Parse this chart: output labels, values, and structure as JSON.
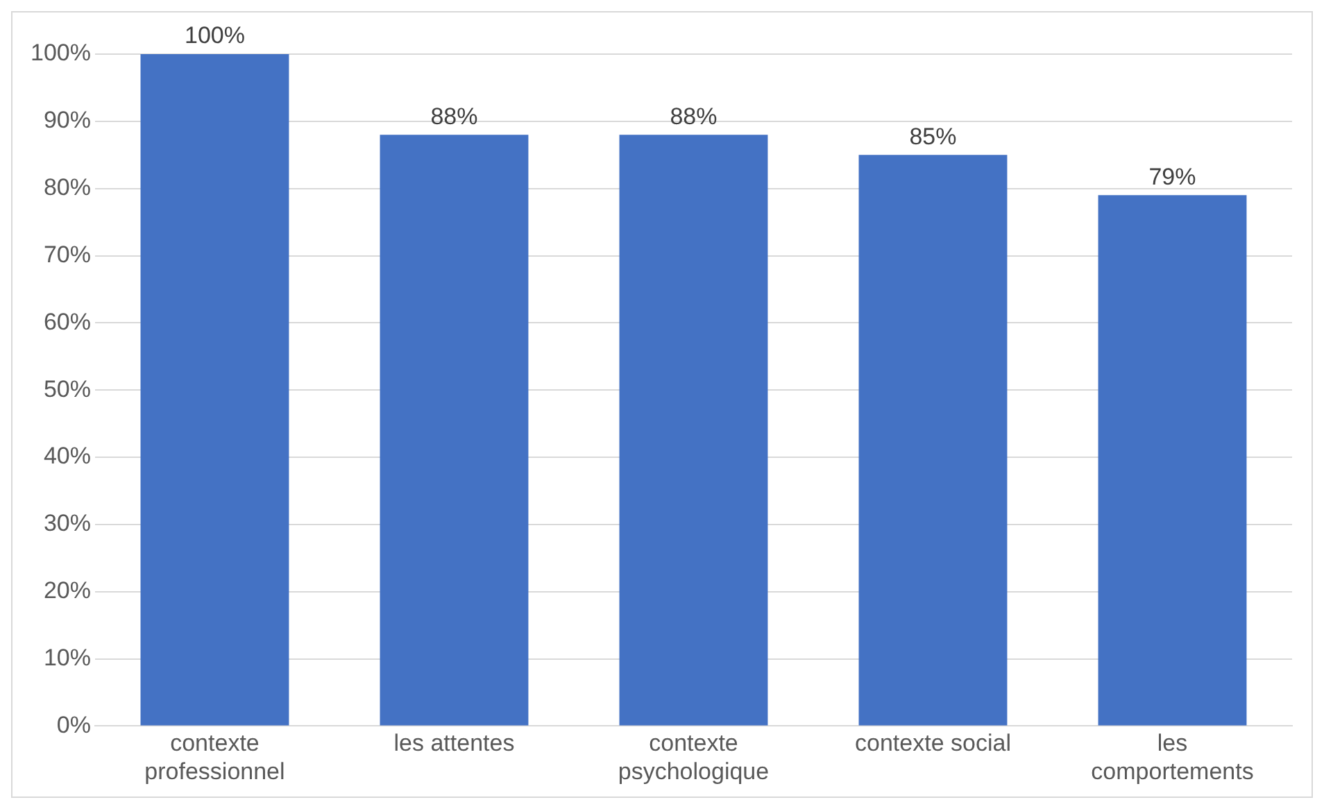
{
  "chart_data": {
    "type": "bar",
    "categories": [
      "contexte professionnel",
      "les attentes",
      "contexte psychologique",
      "contexte social",
      "les comportements"
    ],
    "values": [
      100,
      88,
      88,
      85,
      79
    ],
    "value_labels": [
      "100%",
      "88%",
      "88%",
      "85%",
      "79%"
    ],
    "color": "#4472c4",
    "ylim": [
      0,
      100
    ],
    "yticks": [
      {
        "value": 0,
        "label": "0%"
      },
      {
        "value": 10,
        "label": "10%"
      },
      {
        "value": 20,
        "label": "20%"
      },
      {
        "value": 30,
        "label": "30%"
      },
      {
        "value": 40,
        "label": "40%"
      },
      {
        "value": 50,
        "label": "50%"
      },
      {
        "value": 60,
        "label": "60%"
      },
      {
        "value": 70,
        "label": "70%"
      },
      {
        "value": 80,
        "label": "80%"
      },
      {
        "value": 90,
        "label": "90%"
      },
      {
        "value": 100,
        "label": "100%"
      }
    ],
    "grid": "y",
    "legend": false
  }
}
